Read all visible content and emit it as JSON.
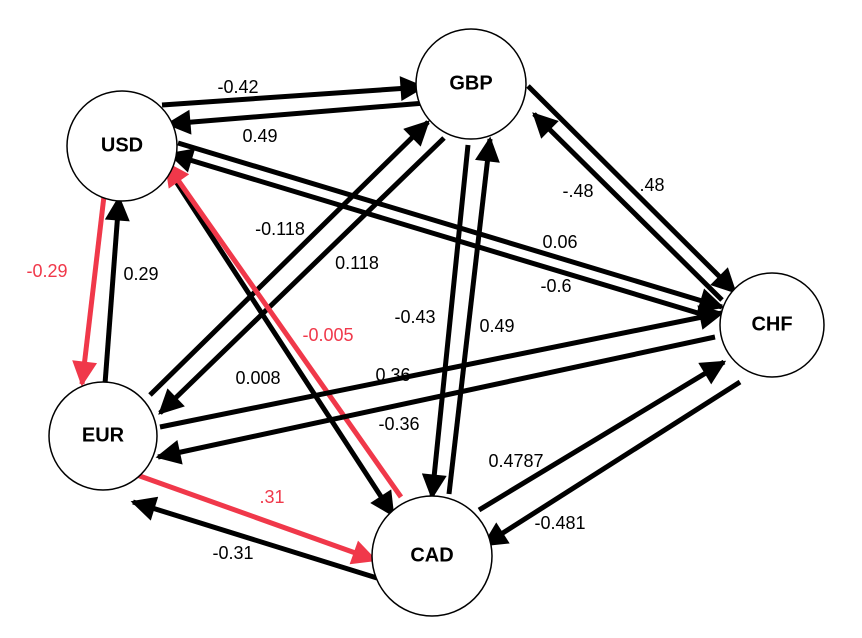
{
  "colors": {
    "normal": "#000000",
    "highlight": "#f0384a"
  },
  "nodes": [
    {
      "id": "USD",
      "label": "USD"
    },
    {
      "id": "GBP",
      "label": "GBP"
    },
    {
      "id": "CHF",
      "label": "CHF"
    },
    {
      "id": "EUR",
      "label": "EUR"
    },
    {
      "id": "CAD",
      "label": "CAD"
    }
  ],
  "edges": [
    {
      "from": "USD",
      "to": "GBP",
      "label": "-0.42",
      "highlight": false
    },
    {
      "from": "GBP",
      "to": "USD",
      "label": "0.49",
      "highlight": false
    },
    {
      "from": "GBP",
      "to": "CHF",
      "label": ".48",
      "highlight": false
    },
    {
      "from": "CHF",
      "to": "GBP",
      "label": "-.48",
      "highlight": false
    },
    {
      "from": "USD",
      "to": "CHF",
      "label": "0.06",
      "highlight": false
    },
    {
      "from": "CHF",
      "to": "USD",
      "label": "-0.6",
      "highlight": false
    },
    {
      "from": "USD",
      "to": "EUR",
      "label": "-0.29",
      "highlight": true
    },
    {
      "from": "EUR",
      "to": "USD",
      "label": "0.29",
      "highlight": false
    },
    {
      "from": "EUR",
      "to": "GBP",
      "label": "-0.118",
      "highlight": false
    },
    {
      "from": "GBP",
      "to": "EUR",
      "label": "0.118",
      "highlight": false
    },
    {
      "from": "GBP",
      "to": "CAD",
      "label": "-0.43",
      "highlight": false
    },
    {
      "from": "CAD",
      "to": "GBP",
      "label": "0.49",
      "highlight": false
    },
    {
      "from": "USD",
      "to": "CAD",
      "label": "0.008",
      "highlight": false
    },
    {
      "from": "CAD",
      "to": "USD",
      "label": "-0.005",
      "highlight": true
    },
    {
      "from": "EUR",
      "to": "CHF",
      "label": "0.36",
      "highlight": false
    },
    {
      "from": "CHF",
      "to": "EUR",
      "label": "-0.36",
      "highlight": false
    },
    {
      "from": "EUR",
      "to": "CAD",
      "label": ".31",
      "highlight": true
    },
    {
      "from": "CAD",
      "to": "EUR",
      "label": "-0.31",
      "highlight": false
    },
    {
      "from": "CAD",
      "to": "CHF",
      "label": "0.4787",
      "highlight": false
    },
    {
      "from": "CHF",
      "to": "CAD",
      "label": "-0.481",
      "highlight": false
    }
  ]
}
